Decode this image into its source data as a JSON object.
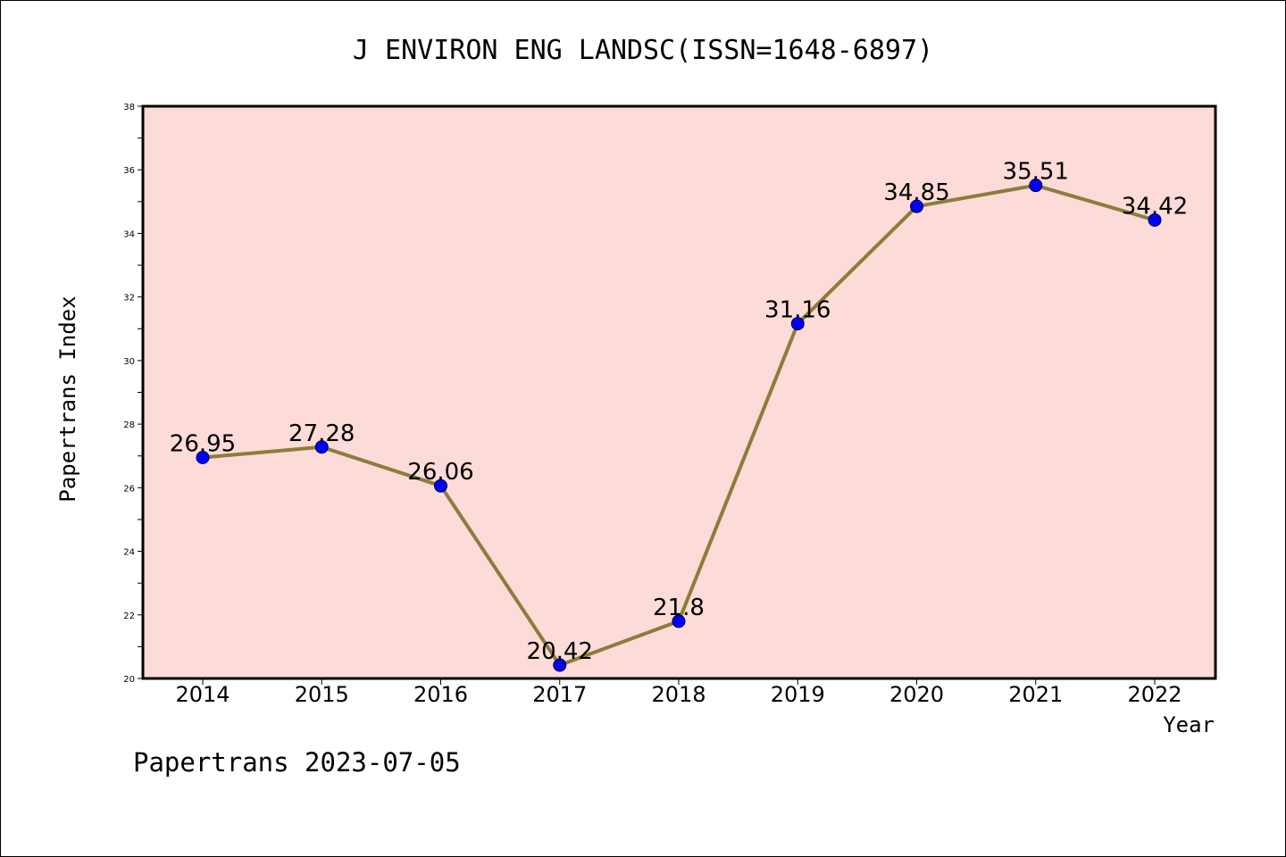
{
  "chart_data": {
    "type": "line",
    "title": "J ENVIRON ENG LANDSC(ISSN=1648-6897)",
    "xlabel": "Year",
    "ylabel": "Papertrans Index",
    "categories": [
      "2014",
      "2015",
      "2016",
      "2017",
      "2018",
      "2019",
      "2020",
      "2021",
      "2022"
    ],
    "series": [
      {
        "values": [
          26.95,
          27.28,
          26.06,
          20.42,
          21.8,
          31.16,
          34.85,
          35.51,
          34.42
        ],
        "data_labels": [
          "26.95",
          "27.28",
          "26.06",
          "20.42",
          "21.8",
          "31.16",
          "34.85",
          "35.51",
          "34.42"
        ]
      }
    ],
    "ylim": [
      20,
      38
    ],
    "yticks": [
      "20",
      "22",
      "24",
      "26",
      "28",
      "30",
      "32",
      "34",
      "36",
      "38"
    ],
    "grid": false,
    "colors": {
      "plot_background": "#fddbd8",
      "line": "#8b7d3a",
      "marker": "#0000ff"
    }
  },
  "footer": "Papertrans 2023-07-05"
}
